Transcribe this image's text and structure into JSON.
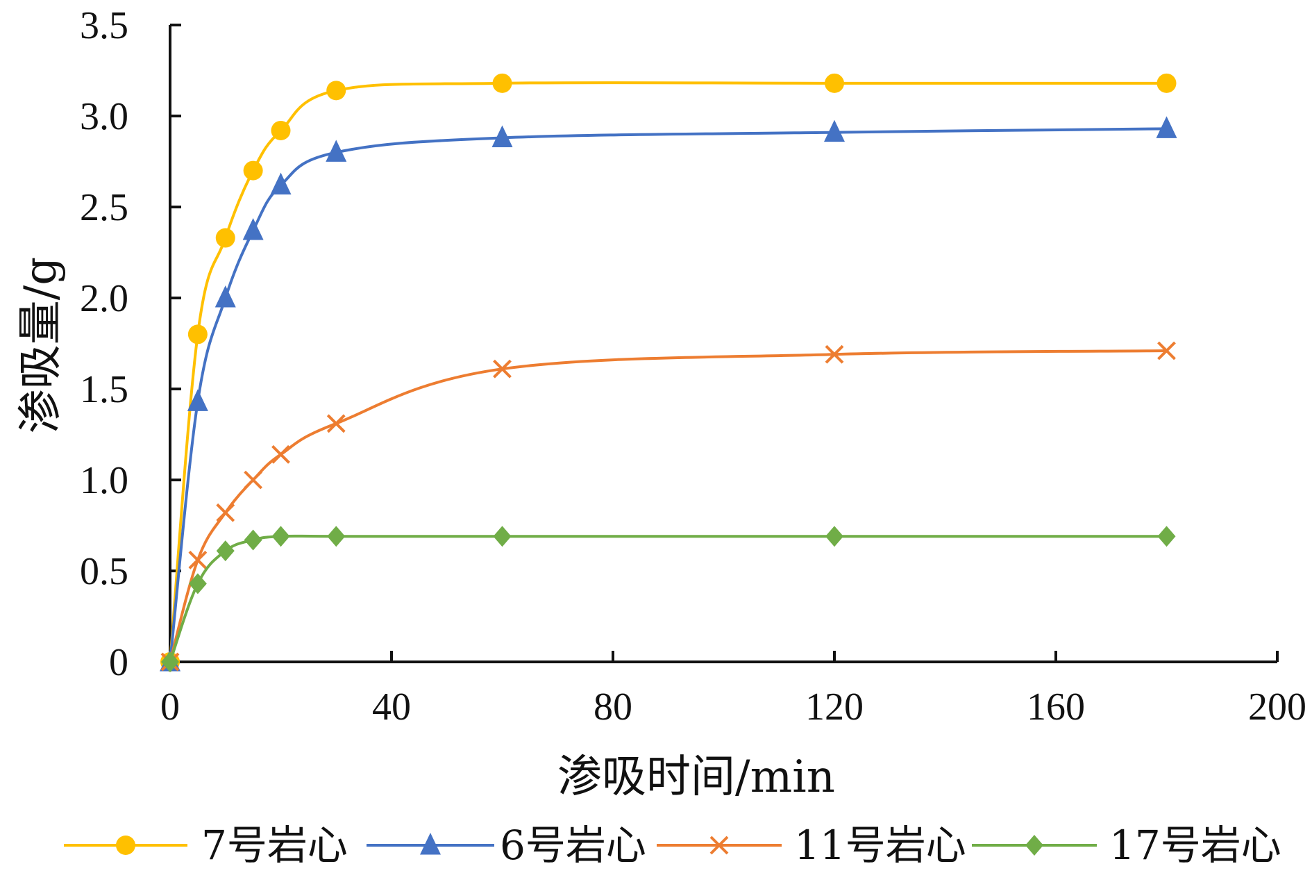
{
  "chart_data": {
    "type": "line",
    "title": "",
    "xlabel": "渗吸时间/min",
    "ylabel": "渗吸量/g",
    "xlim": [
      0,
      200
    ],
    "ylim": [
      0,
      3.5
    ],
    "xticks": [
      0,
      40,
      80,
      120,
      160,
      200
    ],
    "xtick_labels": [
      "0",
      "40",
      "80",
      "120",
      "160",
      "200"
    ],
    "yticks": [
      0,
      0.5,
      1.0,
      1.5,
      2.0,
      2.5,
      3.0,
      3.5
    ],
    "ytick_labels": [
      "0",
      "0.5",
      "1.0",
      "1.5",
      "2.0",
      "2.5",
      "3.0",
      "3.5"
    ],
    "grid": false,
    "legend_position": "bottom",
    "series": [
      {
        "name": "7号岩心",
        "color": "#FFC000",
        "marker": "circle",
        "x": [
          0,
          5,
          10,
          15,
          20,
          30,
          60,
          120,
          180
        ],
        "y": [
          0,
          1.8,
          2.33,
          2.7,
          2.92,
          3.14,
          3.18,
          3.18,
          3.18
        ]
      },
      {
        "name": "6号岩心",
        "color": "#4472C4",
        "marker": "triangle",
        "x": [
          0,
          5,
          10,
          15,
          20,
          30,
          60,
          120,
          180
        ],
        "y": [
          0,
          1.43,
          2.0,
          2.37,
          2.62,
          2.8,
          2.88,
          2.91,
          2.93
        ]
      },
      {
        "name": "11号岩心",
        "color": "#ED7D31",
        "marker": "x",
        "x": [
          0,
          5,
          10,
          15,
          20,
          30,
          60,
          120,
          180
        ],
        "y": [
          0,
          0.56,
          0.82,
          1.0,
          1.14,
          1.31,
          1.61,
          1.69,
          1.71
        ]
      },
      {
        "name": "17号岩心",
        "color": "#70AD47",
        "marker": "diamond",
        "x": [
          0,
          5,
          10,
          15,
          20,
          30,
          60,
          120,
          180
        ],
        "y": [
          0,
          0.43,
          0.61,
          0.67,
          0.69,
          0.69,
          0.69,
          0.69,
          0.69
        ]
      }
    ]
  }
}
